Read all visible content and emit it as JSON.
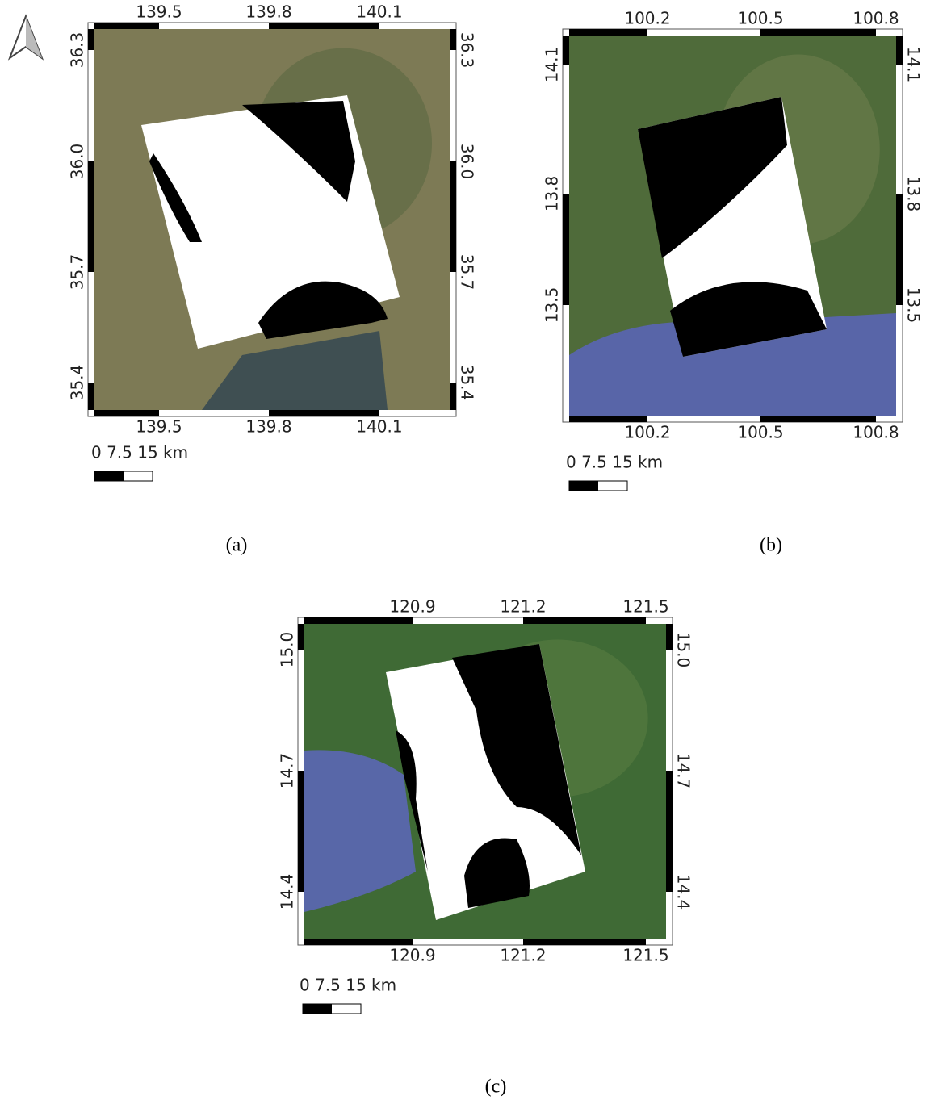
{
  "panels": [
    {
      "top_ticks": [
        "139.5",
        "139.8",
        "140.1"
      ],
      "bottom_ticks": [
        "139.5",
        "139.8",
        "140.1"
      ],
      "left_ticks": [
        "36.3",
        "36.0",
        "35.7",
        "35.4"
      ],
      "right_ticks": [
        "36.3",
        "36.0",
        "35.7",
        "35.4"
      ],
      "scale_bar": "0  7.5 15 km",
      "caption": "(a)"
    },
    {
      "top_ticks": [
        "100.2",
        "100.5",
        "100.8"
      ],
      "bottom_ticks": [
        "100.2",
        "100.5",
        "100.8"
      ],
      "left_ticks": [
        "14.1",
        "13.8",
        "13.5"
      ],
      "right_ticks": [
        "14.1",
        "13.8",
        "13.5"
      ],
      "scale_bar": "0  7.5 15 km",
      "caption": "(b)"
    },
    {
      "top_ticks": [
        "120.9",
        "121.2",
        "121.5"
      ],
      "bottom_ticks": [
        "120.9",
        "121.2",
        "121.5"
      ],
      "left_ticks": [
        "15.0",
        "14.7",
        "14.4"
      ],
      "right_ticks": [
        "15.0",
        "14.7",
        "14.4"
      ],
      "scale_bar": "0  7.5 15 km",
      "caption": "(c)"
    }
  ]
}
